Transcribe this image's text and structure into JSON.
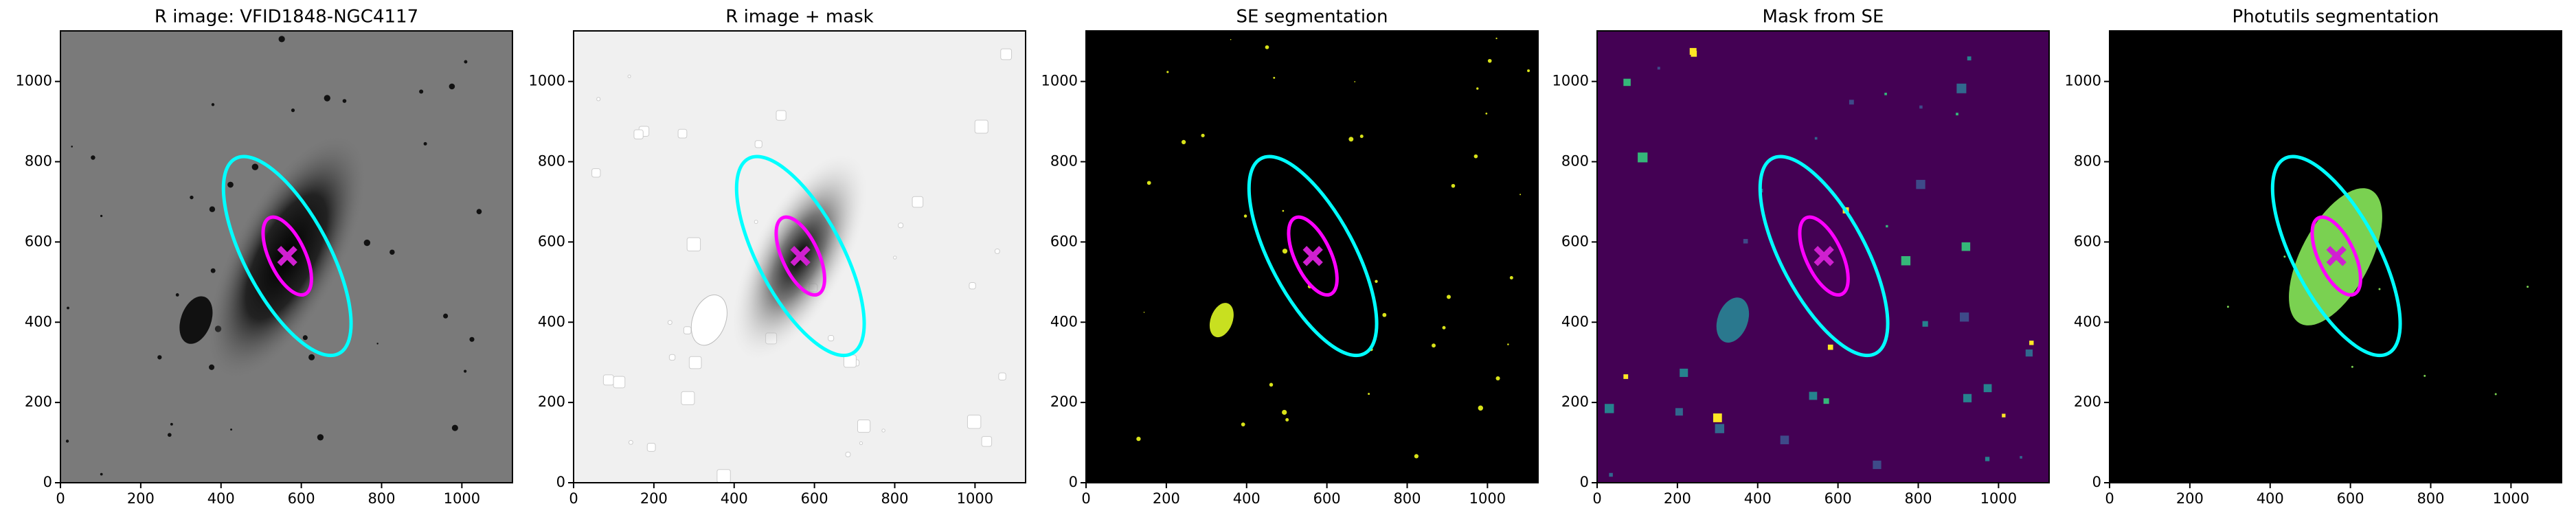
{
  "chart_data": [
    {
      "type": "image",
      "title": "R image: VFID1848-NGC4117",
      "background": "#7a7a7a",
      "xlim": [
        0,
        1126
      ],
      "ylim": [
        0,
        1126
      ],
      "xticks": [
        0,
        200,
        400,
        600,
        800,
        1000
      ],
      "yticks": [
        0,
        200,
        400,
        600,
        800,
        1000
      ],
      "ellipses": [
        {
          "x": 565,
          "y": 565,
          "a": 275,
          "b": 105,
          "angle": 118,
          "color": "#00ffff"
        },
        {
          "x": 565,
          "y": 565,
          "a": 105,
          "b": 45,
          "angle": 115,
          "color": "#ff00ff"
        }
      ],
      "marker": {
        "x": 565,
        "y": 565,
        "color": "#d020d0"
      }
    },
    {
      "type": "image",
      "title": "R image + mask",
      "background": "#f0f0f0",
      "xlim": [
        0,
        1126
      ],
      "ylim": [
        0,
        1126
      ],
      "xticks": [
        0,
        200,
        400,
        600,
        800,
        1000
      ],
      "yticks": [
        0,
        200,
        400,
        600,
        800,
        1000
      ],
      "ellipses": [
        {
          "x": 565,
          "y": 565,
          "a": 275,
          "b": 105,
          "angle": 118,
          "color": "#00ffff"
        },
        {
          "x": 565,
          "y": 565,
          "a": 105,
          "b": 45,
          "angle": 115,
          "color": "#ff00ff"
        }
      ],
      "marker": {
        "x": 565,
        "y": 565,
        "color": "#d020d0"
      }
    },
    {
      "type": "image",
      "title": "SE segmentation",
      "background": "#000000",
      "xlim": [
        0,
        1126
      ],
      "ylim": [
        0,
        1126
      ],
      "xticks": [
        0,
        200,
        400,
        600,
        800,
        1000
      ],
      "yticks": [
        0,
        200,
        400,
        600,
        800,
        1000
      ],
      "ellipses": [
        {
          "x": 565,
          "y": 565,
          "a": 275,
          "b": 105,
          "angle": 118,
          "color": "#00ffff"
        },
        {
          "x": 565,
          "y": 565,
          "a": 105,
          "b": 45,
          "angle": 115,
          "color": "#ff00ff"
        }
      ],
      "marker": {
        "x": 565,
        "y": 565,
        "color": "#d020d0"
      }
    },
    {
      "type": "image",
      "title": "Mask from SE",
      "background": "#440154",
      "xlim": [
        0,
        1126
      ],
      "ylim": [
        0,
        1126
      ],
      "xticks": [
        0,
        200,
        400,
        600,
        800,
        1000
      ],
      "yticks": [
        0,
        200,
        400,
        600,
        800,
        1000
      ],
      "ellipses": [
        {
          "x": 565,
          "y": 565,
          "a": 275,
          "b": 105,
          "angle": 118,
          "color": "#00ffff"
        },
        {
          "x": 565,
          "y": 565,
          "a": 105,
          "b": 45,
          "angle": 115,
          "color": "#ff00ff"
        }
      ],
      "marker": {
        "x": 565,
        "y": 565,
        "color": "#d020d0"
      }
    },
    {
      "type": "image",
      "title": "Photutils segmentation",
      "background": "#000000",
      "xlim": [
        0,
        1126
      ],
      "ylim": [
        0,
        1126
      ],
      "xticks": [
        0,
        200,
        400,
        600,
        800,
        1000
      ],
      "yticks": [
        0,
        200,
        400,
        600,
        800,
        1000
      ],
      "ellipses": [
        {
          "x": 565,
          "y": 565,
          "a": 275,
          "b": 105,
          "angle": 118,
          "color": "#00ffff"
        },
        {
          "x": 565,
          "y": 565,
          "a": 105,
          "b": 45,
          "angle": 115,
          "color": "#ff00ff"
        }
      ],
      "marker": {
        "x": 565,
        "y": 565,
        "color": "#d020d0"
      }
    }
  ]
}
